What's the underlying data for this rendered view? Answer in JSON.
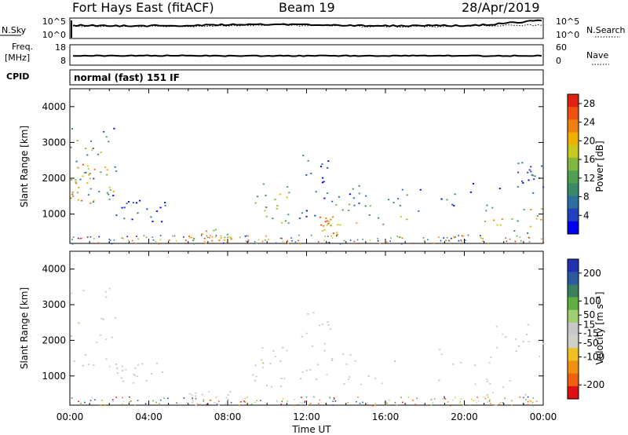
{
  "header": {
    "left": "Fort Hays East (fitACF)",
    "center": "Beam 19",
    "right": "28/Apr/2019"
  },
  "noise_panel": {
    "left_label": "N.Sky",
    "left_ticks": [
      "10^5",
      "10^0"
    ],
    "right_label": "N.Search",
    "right_ticks": [
      "10^5",
      "10^0"
    ],
    "right_line_style": "dotted"
  },
  "freq_panel": {
    "left_label_lines": [
      "Freq.",
      "[MHz]"
    ],
    "left_ticks": [
      "18",
      "8"
    ],
    "right_label": "Nave",
    "right_ticks": [
      "60",
      "0"
    ],
    "right_line_style": "dotted"
  },
  "cpid": {
    "label": "CPID",
    "value": "normal (fast) 151 IF"
  },
  "colors": {
    "power_scale": [
      "#0000f0",
      "#2040c0",
      "#2c6fa0",
      "#3a8a6a",
      "#50a050",
      "#80b840",
      "#c8c820",
      "#f0b000",
      "#f08010",
      "#f05010",
      "#e02010"
    ],
    "velocity_scale": [
      "#2030b0",
      "#2a5aa0",
      "#3a8060",
      "#60b040",
      "#a0d070",
      "#c8c8c8",
      "#d0d0c8",
      "#f0c020",
      "#f09010",
      "#f06010",
      "#e01010"
    ]
  },
  "chart_data": [
    {
      "type": "heatmap",
      "name": "power",
      "ylabel": "Slant Range [km]",
      "xlabel": "Time UT",
      "x_ticks": [
        "00:00",
        "04:00",
        "08:00",
        "12:00",
        "16:00",
        "20:00",
        "00:00"
      ],
      "xlim_hours": [
        0,
        24
      ],
      "y_ticks": [
        1000,
        2000,
        3000,
        4000
      ],
      "ylim": [
        180,
        4500
      ],
      "colorbar": {
        "label": "Power [dB]",
        "ticks": [
          4,
          8,
          12,
          16,
          20,
          24,
          28
        ],
        "range": [
          0,
          30
        ]
      },
      "echo_regions": [
        {
          "t0": 0.0,
          "t1": 1.3,
          "r0": 1300,
          "r1": 2500,
          "peak": 26
        },
        {
          "t0": 0.0,
          "t1": 2.4,
          "r0": 1000,
          "r1": 3500,
          "peak": 16
        },
        {
          "t0": 0.2,
          "t1": 2.3,
          "r0": 1400,
          "r1": 3000,
          "peak": 20
        },
        {
          "t0": 2.3,
          "t1": 4.8,
          "r0": 800,
          "r1": 1400,
          "peak": 11
        },
        {
          "t0": 9.2,
          "t1": 11.2,
          "r0": 700,
          "r1": 1900,
          "peak": 22
        },
        {
          "t0": 11.6,
          "t1": 13.2,
          "r0": 900,
          "r1": 2800,
          "peak": 12
        },
        {
          "t0": 12.6,
          "t1": 13.6,
          "r0": 400,
          "r1": 1000,
          "peak": 26
        },
        {
          "t0": 13.0,
          "t1": 18.5,
          "r0": 700,
          "r1": 1700,
          "peak": 20
        },
        {
          "t0": 14.0,
          "t1": 22.3,
          "r0": 1100,
          "r1": 1900,
          "peak": 12
        },
        {
          "t0": 20.5,
          "t1": 24.0,
          "r0": 300,
          "r1": 1200,
          "peak": 24
        },
        {
          "t0": 22.6,
          "t1": 24.0,
          "r0": 1600,
          "r1": 2500,
          "peak": 14
        },
        {
          "t0": 6.0,
          "t1": 8.3,
          "r0": 180,
          "r1": 600,
          "peak": 24
        }
      ]
    },
    {
      "type": "heatmap",
      "name": "velocity",
      "ylabel": "Slant Range [km]",
      "xlabel": "Time UT",
      "x_ticks": [
        "00:00",
        "04:00",
        "08:00",
        "12:00",
        "16:00",
        "20:00",
        "00:00"
      ],
      "xlim_hours": [
        0,
        24
      ],
      "y_ticks": [
        1000,
        2000,
        3000,
        4000
      ],
      "ylim": [
        180,
        4500
      ],
      "colorbar": {
        "label": "Velocity [m s⁻¹]",
        "ticks": [
          200,
          100,
          50,
          15,
          -15,
          -50,
          -100,
          -200
        ],
        "range": [
          -250,
          250
        ]
      },
      "echo_regions": [
        {
          "t0": 0.0,
          "t1": 2.4,
          "r0": 1000,
          "r1": 3500,
          "peak": 0
        },
        {
          "t0": 2.3,
          "t1": 4.8,
          "r0": 800,
          "r1": 1400,
          "peak": 0
        },
        {
          "t0": 9.2,
          "t1": 11.2,
          "r0": 700,
          "r1": 1900,
          "peak": 0
        },
        {
          "t0": 11.6,
          "t1": 13.2,
          "r0": 900,
          "r1": 2800,
          "peak": 0
        },
        {
          "t0": 13.0,
          "t1": 22.3,
          "r0": 700,
          "r1": 1900,
          "peak": 0
        },
        {
          "t0": 20.5,
          "t1": 24.0,
          "r0": 300,
          "r1": 2500,
          "peak": 0
        },
        {
          "t0": 6.0,
          "t1": 8.3,
          "r0": 180,
          "r1": 600,
          "peak": -60
        }
      ]
    }
  ]
}
